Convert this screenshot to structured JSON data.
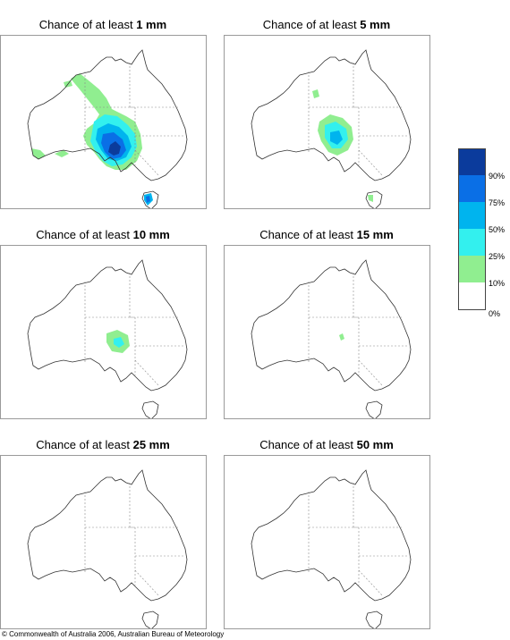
{
  "panels": [
    {
      "title_prefix": "Chance of at least",
      "amount": "1 mm"
    },
    {
      "title_prefix": "Chance of at least",
      "amount": "5 mm"
    },
    {
      "title_prefix": "Chance of at least",
      "amount": "10 mm"
    },
    {
      "title_prefix": "Chance of at least",
      "amount": "15 mm"
    },
    {
      "title_prefix": "Chance of at least",
      "amount": "25 mm"
    },
    {
      "title_prefix": "Chance of at least",
      "amount": "50 mm"
    }
  ],
  "legend": {
    "bands": [
      {
        "range": "90-100%",
        "color": "#0b3b9c"
      },
      {
        "range": "75-90%",
        "color": "#0a6fe6"
      },
      {
        "range": "50-75%",
        "color": "#00b4ee"
      },
      {
        "range": "25-50%",
        "color": "#33f0ee"
      },
      {
        "range": "10-25%",
        "color": "#90ee90"
      },
      {
        "range": "0-10%",
        "color": "#ffffff"
      }
    ],
    "labels": [
      "90%",
      "75%",
      "50%",
      "25%",
      "10%",
      "0%"
    ]
  },
  "colors": {
    "coast": "#333333",
    "state_border": "#8a8a8a",
    "frame": "#9a9a9a"
  },
  "footer": "© Commonwealth of Australia 2006, Australian Bureau of Meteorology"
}
